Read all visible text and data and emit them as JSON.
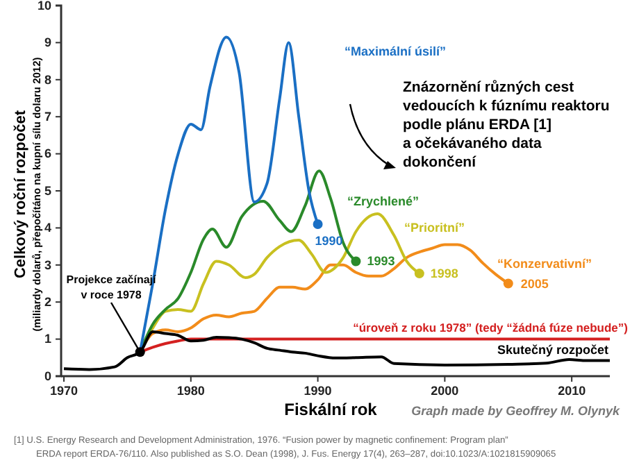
{
  "chart_data": {
    "type": "line",
    "xlabel": "Fiskální rok",
    "ylabel": "Celkový roční rozpočet\n(miliardy dolarů, přepočítáno na kupní sílu dolaru 2012)",
    "xlim": [
      1970,
      2013
    ],
    "ylim": [
      0,
      10
    ],
    "xticks": [
      1970,
      1980,
      1990,
      2000,
      2010
    ],
    "yticks": [
      0,
      1,
      2,
      3,
      4,
      5,
      6,
      7,
      8,
      9,
      10
    ],
    "grid": false,
    "marker": "none",
    "line_style": "solid",
    "series": [
      {
        "name": "“Maximální úsilí”",
        "color": "#1a6fc4",
        "x": [
          1976,
          1977,
          1978,
          1979,
          1980,
          1980.8,
          1981.5,
          1982.8,
          1983.8,
          1985,
          1986,
          1987,
          1987.7,
          1988.5,
          1989.3,
          1990
        ],
        "values": [
          0.65,
          2.5,
          4.5,
          6,
          6.8,
          6.65,
          7.8,
          9.15,
          8.2,
          4.7,
          5.2,
          7.5,
          9,
          7,
          5,
          4.1
        ]
      },
      {
        "name": "“Zrychlené”",
        "color": "#2a8a2a",
        "x": [
          1976,
          1977,
          1978,
          1979,
          1980,
          1981,
          1981.7,
          1982.8,
          1984,
          1985.7,
          1987,
          1987.9,
          1989,
          1990.1,
          1991,
          1992,
          1993
        ],
        "values": [
          0.65,
          1.4,
          1.8,
          2.1,
          2.8,
          3.7,
          3.97,
          3.48,
          4.3,
          4.72,
          4.2,
          3.9,
          4.6,
          5.54,
          4.8,
          3.6,
          3.1
        ]
      },
      {
        "name": "“Prioritní”",
        "color": "#c8c020",
        "x": [
          1976,
          1977,
          1978,
          1979,
          1980,
          1981,
          1982,
          1983,
          1984.3,
          1985,
          1986,
          1987,
          1988.5,
          1989.5,
          1990.6,
          1992,
          1993,
          1994.7,
          1996,
          1997,
          1998
        ],
        "values": [
          0.65,
          1.3,
          1.75,
          1.8,
          1.75,
          2.5,
          3.1,
          3,
          2.66,
          2.75,
          3.2,
          3.5,
          3.67,
          3.3,
          2.8,
          3.2,
          3.9,
          4.38,
          3.8,
          3.1,
          2.77
        ]
      },
      {
        "name": "“Konzervativní”",
        "color": "#f28c1a",
        "x": [
          1976,
          1977,
          1978,
          1979,
          1980,
          1981,
          1982,
          1983,
          1984,
          1985,
          1986,
          1987,
          1988,
          1989,
          1990,
          1991,
          1992,
          1993,
          1994,
          1995,
          1996,
          1997,
          1998,
          1999,
          2000,
          2001,
          2002,
          2003,
          2004,
          2005
        ],
        "values": [
          0.65,
          1.15,
          1.25,
          1.2,
          1.3,
          1.55,
          1.65,
          1.6,
          1.7,
          1.75,
          2.1,
          2.4,
          2.4,
          2.35,
          2.6,
          3,
          3,
          2.8,
          2.7,
          2.7,
          2.9,
          3.2,
          3.35,
          3.45,
          3.55,
          3.55,
          3.4,
          3.05,
          2.75,
          2.5
        ]
      },
      {
        "name": "“úroveň z roku 1978” (tedy “žádná fúze nebude”)",
        "color": "#d42020",
        "x": [
          1976,
          1977,
          1978,
          1979,
          1980,
          2013
        ],
        "values": [
          0.65,
          0.78,
          0.88,
          0.95,
          1,
          1
        ]
      },
      {
        "name": "Skutečný rozpočet",
        "color": "#000000",
        "x": [
          1970,
          1972,
          1974,
          1975,
          1976,
          1977,
          1978,
          1979,
          1980,
          1981,
          1982,
          1983,
          1984,
          1985,
          1986,
          1987,
          1988,
          1989,
          1990,
          1991.4,
          1993,
          1995,
          1996,
          2000,
          2005,
          2008,
          2009.8,
          2011,
          2013
        ],
        "values": [
          0.2,
          0.18,
          0.25,
          0.5,
          0.65,
          1.2,
          1.15,
          1.1,
          0.95,
          0.97,
          1.05,
          1.04,
          1,
          0.9,
          0.75,
          0.7,
          0.65,
          0.62,
          0.55,
          0.49,
          0.5,
          0.52,
          0.34,
          0.3,
          0.32,
          0.35,
          0.45,
          0.42,
          0.42
        ]
      }
    ],
    "annotations": [
      {
        "text": "1990",
        "x": 1990,
        "y": 4.1
      },
      {
        "text": "1993",
        "x": 1993,
        "y": 3.1
      },
      {
        "text": "1998",
        "x": 1998,
        "y": 2.77
      },
      {
        "text": "2005",
        "x": 2005,
        "y": 2.5
      },
      {
        "text": "Projekce začínají\nv roce 1978",
        "x": 1976,
        "y": 0.65
      },
      "Znázornění různých cest\nvedoucích k fúznímu reaktoru\npodle plánu ERDA [1]\na očekávaného data\ndokončení",
      "Graph made by Geoffrey M. Olynyk",
      "[1] U.S. Energy Research and Development Administration, 1976. “Fusion power by magnetic confinement: Program plan”\nERDA report ERDA-76/110. Also published as S.O. Dean (1998), J. Fus. Energy 17(4), 263–287, doi:10.1023/A:1021815909065"
    ]
  }
}
